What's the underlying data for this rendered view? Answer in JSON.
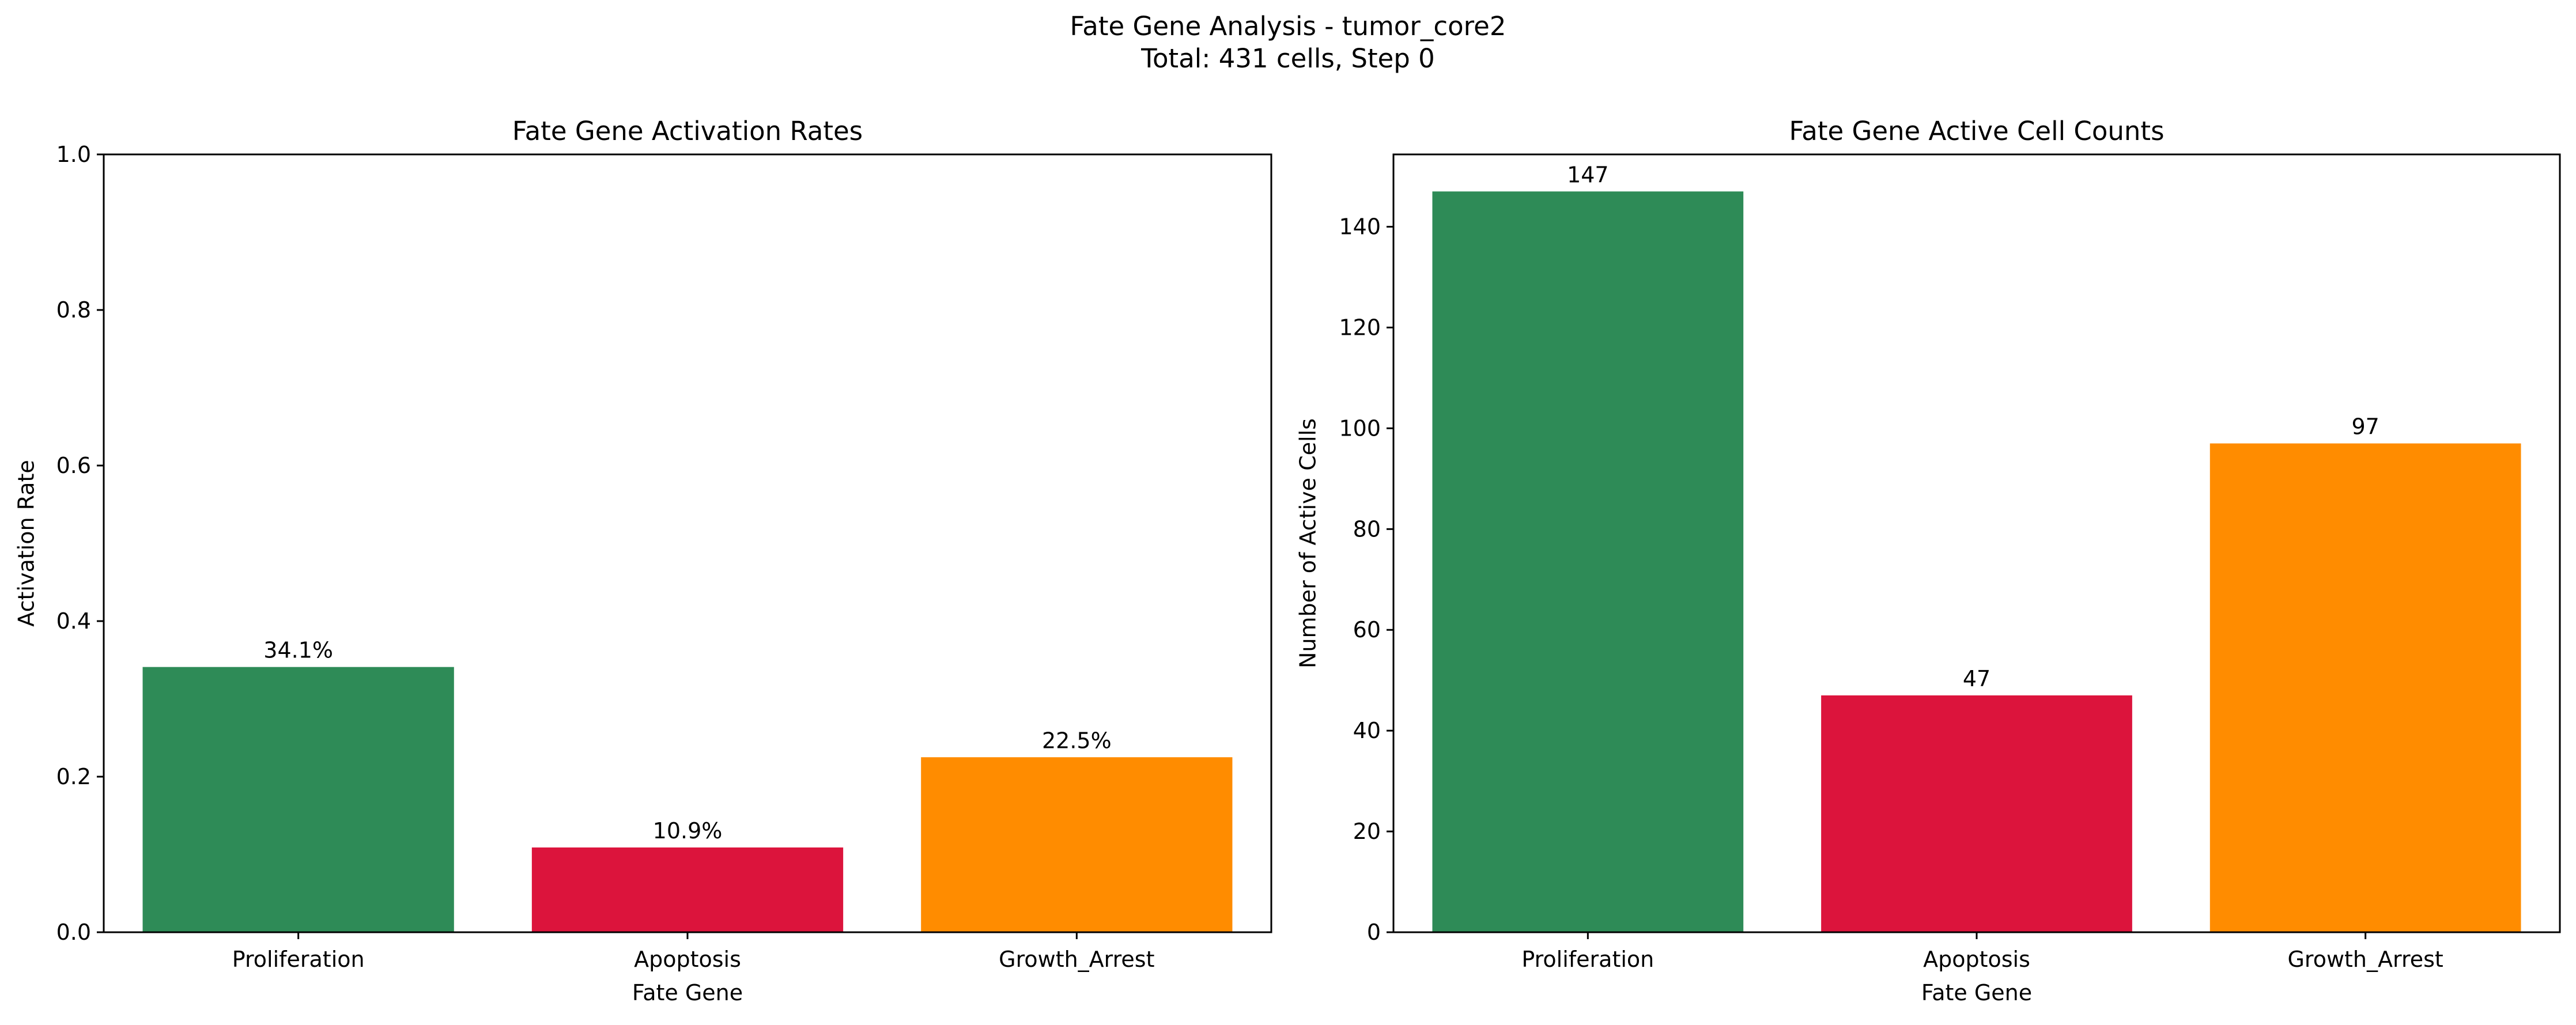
{
  "figure": {
    "suptitle_line1": "Fate Gene Analysis - tumor_core2",
    "suptitle_line2": "Total: 431 cells, Step 0"
  },
  "chart_data": [
    {
      "type": "bar",
      "title": "Fate Gene Activation Rates",
      "xlabel": "Fate Gene",
      "ylabel": "Activation Rate",
      "categories": [
        "Proliferation",
        "Apoptosis",
        "Growth_Arrest"
      ],
      "values": [
        0.341,
        0.109,
        0.225
      ],
      "data_labels": [
        "34.1%",
        "10.9%",
        "22.5%"
      ],
      "colors": [
        "#2e8b57",
        "#dc143c",
        "#ff8c00"
      ],
      "ylim": [
        0,
        1.0
      ],
      "yticks": [
        0,
        0.2,
        0.4,
        0.6,
        0.8,
        1.0
      ],
      "ytick_labels": [
        "0.0",
        "0.2",
        "0.4",
        "0.6",
        "0.8",
        "1.0"
      ],
      "grid": false
    },
    {
      "type": "bar",
      "title": "Fate Gene Active Cell Counts",
      "xlabel": "Fate Gene",
      "ylabel": "Number of Active Cells",
      "categories": [
        "Proliferation",
        "Apoptosis",
        "Growth_Arrest"
      ],
      "values": [
        147,
        47,
        97
      ],
      "data_labels": [
        "147",
        "47",
        "97"
      ],
      "colors": [
        "#2e8b57",
        "#dc143c",
        "#ff8c00"
      ],
      "ylim": [
        0,
        154.35
      ],
      "yticks": [
        0,
        20,
        40,
        60,
        80,
        100,
        120,
        140
      ],
      "ytick_labels": [
        "0",
        "20",
        "40",
        "60",
        "80",
        "100",
        "120",
        "140"
      ],
      "grid": false
    }
  ]
}
